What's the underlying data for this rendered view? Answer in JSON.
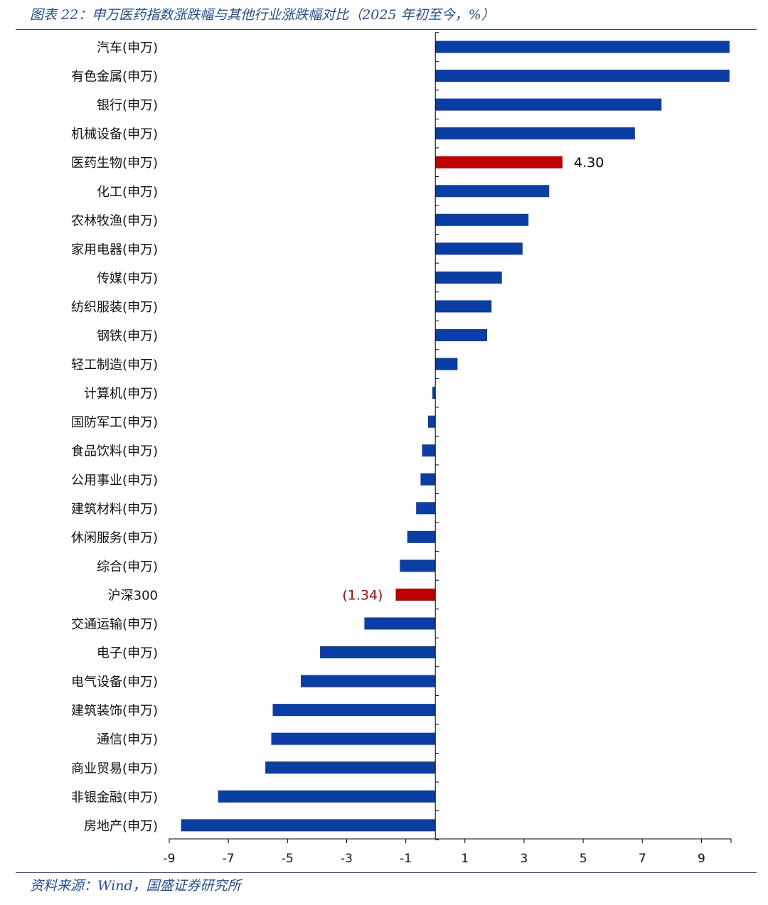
{
  "header": {
    "title": "图表 22：申万医药指数涨跌幅与其他行业涨跌幅对比（2025 年初至今，%）"
  },
  "footer": {
    "source": "资料来源：Wind，国盛证券研究所"
  },
  "colors": {
    "default_bar": "#0b3ea4",
    "highlight_bar": "#c00000",
    "caption": "#1f4e9c",
    "axis": "#000000"
  },
  "chart_data": {
    "type": "bar",
    "orientation": "horizontal",
    "categories": [
      "汽车(申万)",
      "有色金属(申万)",
      "银行(申万)",
      "机械设备(申万)",
      "医药生物(申万)",
      "化工(申万)",
      "农林牧渔(申万)",
      "家用电器(申万)",
      "传媒(申万)",
      "纺织服装(申万)",
      "钢铁(申万)",
      "轻工制造(申万)",
      "计算机(申万)",
      "国防军工(申万)",
      "食品饮料(申万)",
      "公用事业(申万)",
      "建筑材料(申万)",
      "休闲服务(申万)",
      "综合(申万)",
      "沪深300",
      "交通运输(申万)",
      "电子(申万)",
      "电气设备(申万)",
      "建筑装饰(申万)",
      "通信(申万)",
      "商业贸易(申万)",
      "非银金融(申万)",
      "房地产(申万)"
    ],
    "values": [
      9.95,
      9.95,
      7.65,
      6.75,
      4.3,
      3.85,
      3.15,
      2.95,
      2.25,
      1.9,
      1.75,
      0.75,
      -0.1,
      -0.25,
      -0.45,
      -0.5,
      -0.65,
      -0.95,
      -1.2,
      -1.34,
      -2.4,
      -3.9,
      -4.55,
      -5.5,
      -5.55,
      -5.75,
      -7.35,
      -8.6
    ],
    "highlight": [
      "医药生物(申万)",
      "沪深300"
    ],
    "data_labels": [
      {
        "category": "医药生物(申万)",
        "text": "4.30",
        "color": "#000000"
      },
      {
        "category": "沪深300",
        "text": "(1.34)",
        "color": "#c00000"
      }
    ],
    "x_ticks": [
      "-9",
      "-7",
      "-5",
      "-3",
      "-1",
      "1",
      "3",
      "5",
      "7",
      "9"
    ],
    "xlim": [
      -9,
      10
    ],
    "title": "",
    "xlabel": "",
    "ylabel": "",
    "grid": false,
    "legend": "none"
  }
}
